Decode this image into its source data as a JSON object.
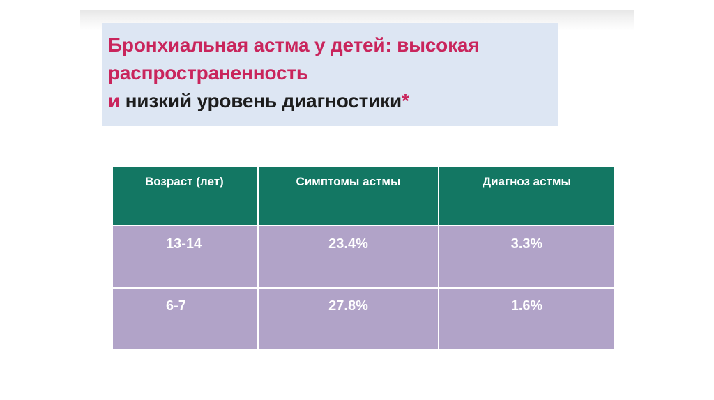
{
  "title": {
    "line1": "Бронхиальная астма у детей: высокая",
    "line2": "распространенность",
    "line3_prefix": "и",
    "line3_rest": " низкий уровень диагностики",
    "asterisk": "*"
  },
  "table": {
    "headers": [
      "Возраст (лет)",
      "Симптомы  астмы",
      "Диагноз  астмы"
    ],
    "rows": [
      [
        "13-14",
        "23.4%",
        "3.3%"
      ],
      [
        "6-7",
        "27.8%",
        "1.6%"
      ]
    ]
  },
  "colors": {
    "title_pink": "#c9255c",
    "title_bg": "#dde6f3",
    "header_bg": "#137763",
    "row_bg": "#b1a3c8"
  }
}
